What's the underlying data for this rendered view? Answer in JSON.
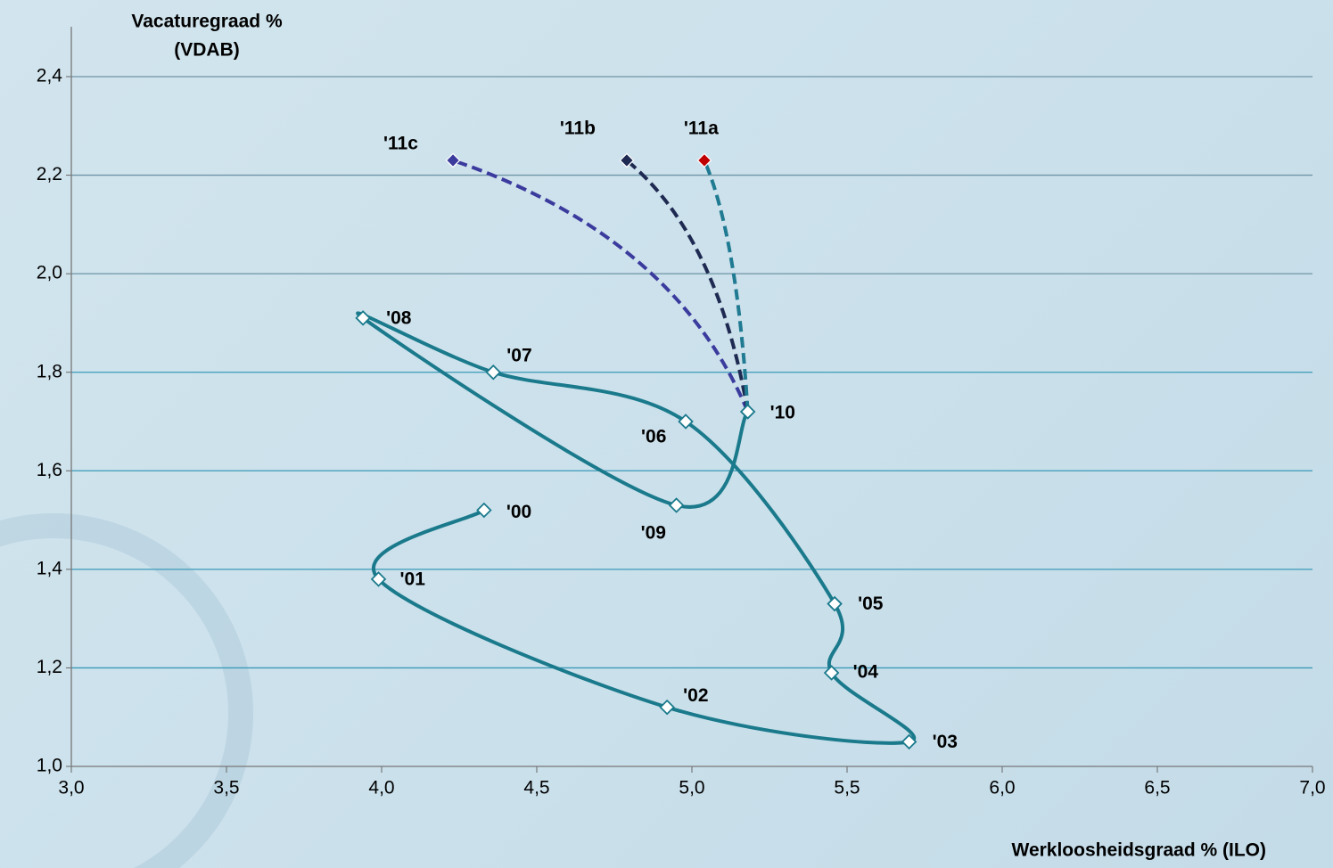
{
  "chart_data": {
    "type": "line",
    "ylabel": [
      "Vacaturegraad %",
      "(VDAB)"
    ],
    "xlabel": "Werkloosheidsgraad % (ILO)",
    "xlim": [
      3.0,
      7.0
    ],
    "ylim": [
      1.0,
      2.4
    ],
    "xticks": [
      {
        "value": 3.0,
        "label": "3,0"
      },
      {
        "value": 3.5,
        "label": "3,5"
      },
      {
        "value": 4.0,
        "label": "4,0"
      },
      {
        "value": 4.5,
        "label": "4,5"
      },
      {
        "value": 5.0,
        "label": "5,0"
      },
      {
        "value": 5.5,
        "label": "5,5"
      },
      {
        "value": 6.0,
        "label": "6,0"
      },
      {
        "value": 6.5,
        "label": "6,5"
      },
      {
        "value": 7.0,
        "label": "7,0"
      }
    ],
    "yticks": [
      {
        "value": 1.0,
        "label": "1,0"
      },
      {
        "value": 1.2,
        "label": "1,2"
      },
      {
        "value": 1.4,
        "label": "1,4"
      },
      {
        "value": 1.6,
        "label": "1,6"
      },
      {
        "value": 1.8,
        "label": "1,8"
      },
      {
        "value": 2.0,
        "label": "2,0"
      },
      {
        "value": 2.2,
        "label": "2,2"
      },
      {
        "value": 2.4,
        "label": "2,4"
      }
    ],
    "grid": true,
    "series": [
      {
        "color": "#1a7a8c",
        "marker_color": "#ffffff",
        "dashed": false,
        "smooth": true,
        "x": [
          4.33,
          3.99,
          4.92,
          5.7,
          5.45,
          5.46,
          4.98,
          4.36,
          3.94,
          4.95,
          5.18
        ],
        "y": [
          1.52,
          1.38,
          1.12,
          1.05,
          1.19,
          1.33,
          1.7,
          1.8,
          1.91,
          1.53,
          1.72
        ],
        "labels": [
          "'00",
          "'01",
          "'02",
          "'03",
          "'04",
          "'05",
          "'06",
          "'07",
          "'08",
          "'09",
          "'10"
        ]
      },
      {
        "color": "#1f7a92",
        "marker_color": "#c00000",
        "dashed": true,
        "smooth": false,
        "x": [
          5.18,
          5.04
        ],
        "y": [
          1.72,
          2.23
        ],
        "labels": [
          null,
          "'11a"
        ]
      },
      {
        "color": "#1f2a52",
        "marker_color": "#1f2a52",
        "dashed": true,
        "smooth": false,
        "x": [
          5.18,
          4.79
        ],
        "y": [
          1.72,
          2.23
        ],
        "labels": [
          null,
          "'11b"
        ]
      },
      {
        "color": "#3b3b9e",
        "marker_color": "#3b3b9e",
        "dashed": true,
        "smooth": false,
        "x": [
          5.18,
          4.23
        ],
        "y": [
          1.72,
          2.23
        ],
        "labels": [
          null,
          "'11c"
        ]
      }
    ]
  }
}
